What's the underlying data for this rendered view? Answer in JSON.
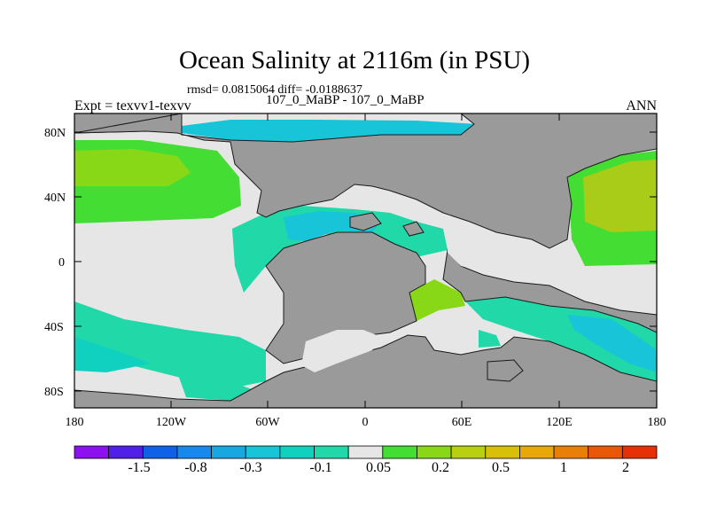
{
  "title": "Ocean Salinity at 2116m (in PSU)",
  "stats": "rmsd= 0.0815064 diff= -0.0188637",
  "subtitle": "107_0_MaBP - 107_0_MaBP",
  "experiment": "Expt = texvv1-texvv",
  "season": "ANN",
  "colors": {
    "land": "#9a9a9a",
    "neutral": "#e6e6e6",
    "cyan_light": "#10d0c0",
    "cyan": "#18c4d8",
    "teal": "#20d8a8",
    "green_light": "#44dd33",
    "green_yellow": "#88d818",
    "yellow_green": "#a8cc18"
  },
  "map": {
    "lat_ticks": [
      "80N",
      "40N",
      "0",
      "40S",
      "80S"
    ],
    "lon_ticks": [
      "180",
      "120W",
      "60W",
      "0",
      "60E",
      "120E",
      "180"
    ]
  },
  "colorbar": {
    "colors": [
      "#8c10f0",
      "#5020e8",
      "#1060e8",
      "#1888ec",
      "#18a8e0",
      "#18c4d8",
      "#10d0c0",
      "#20d8a8",
      "#e6e6e6",
      "#44dd33",
      "#88d818",
      "#b8d010",
      "#d8c008",
      "#e8a808",
      "#e88008",
      "#e85808",
      "#e83008"
    ],
    "labels": [
      "-1.5",
      "-0.8",
      "-0.3",
      "-0.1",
      "0.05",
      "0.2",
      "0.5",
      "1",
      "2"
    ]
  }
}
